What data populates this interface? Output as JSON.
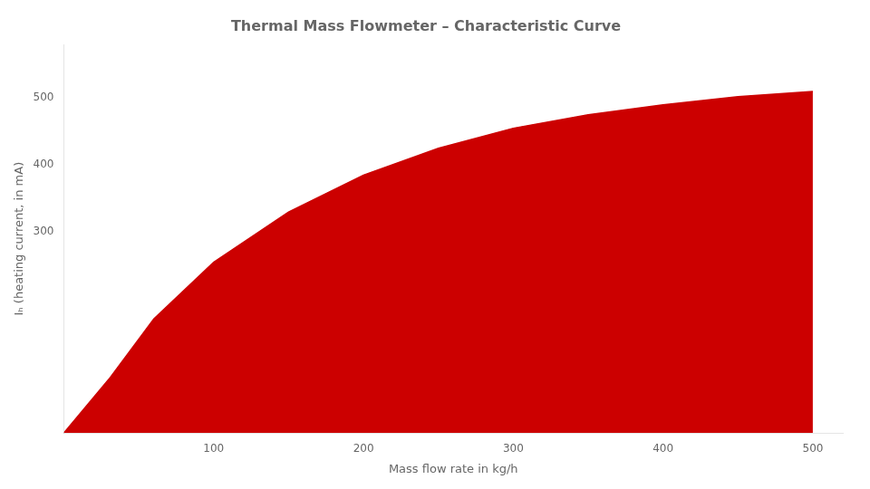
{
  "chart_data": {
    "type": "area",
    "title": "Thermal Mass Flowmeter – Characteristic Curve",
    "xlabel": "Mass flow rate in kg/h",
    "ylabel": "Iₕ (heating current, in mA)",
    "x": [
      0,
      30,
      60,
      100,
      150,
      200,
      250,
      300,
      350,
      400,
      450,
      500
    ],
    "values": [
      0,
      80,
      170,
      255,
      330,
      385,
      425,
      455,
      475,
      490,
      502,
      510
    ],
    "color": "#cc0000",
    "xlim": [
      0,
      520
    ],
    "ylim": [
      0,
      580
    ],
    "xticks": [
      100,
      200,
      300,
      400,
      500
    ],
    "yticks": [
      300,
      400,
      500
    ],
    "grid": false
  }
}
